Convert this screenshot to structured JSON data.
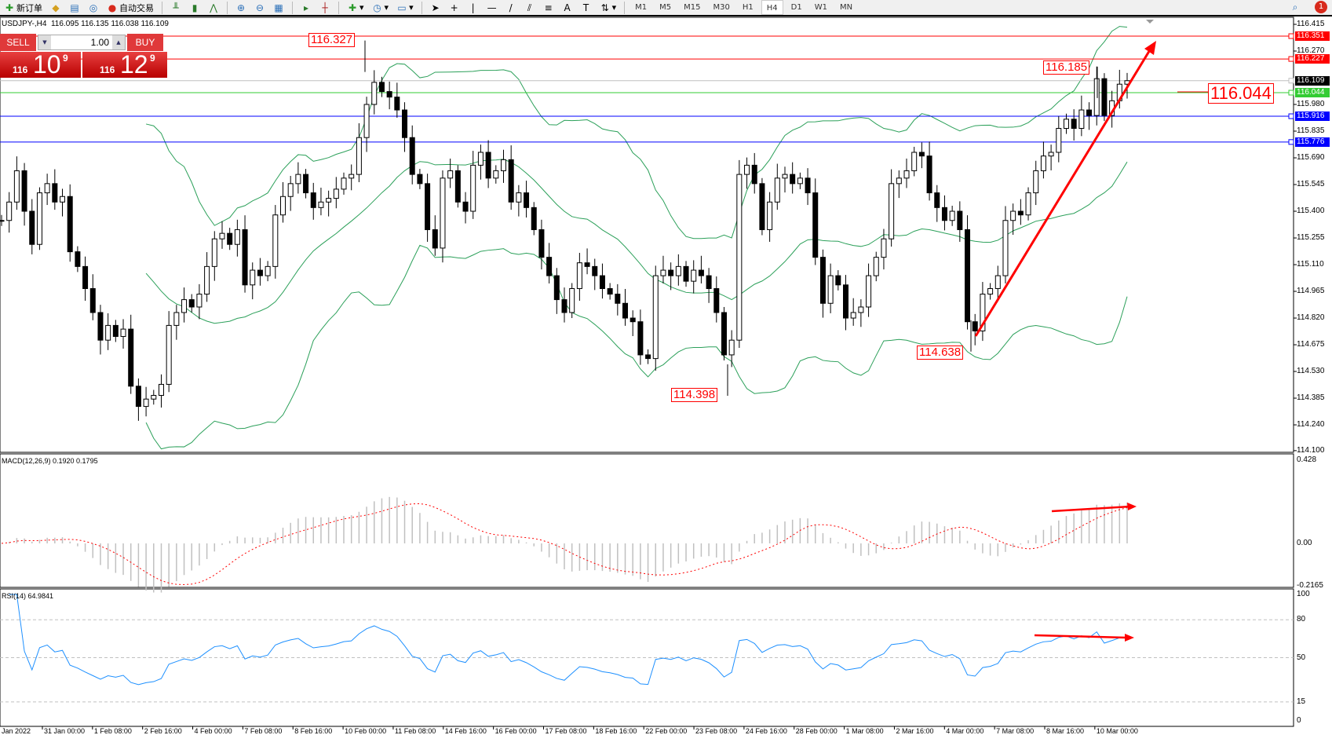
{
  "toolbar": {
    "new_order": "新订单",
    "auto_trading": "自动交易",
    "timeframes": [
      "M1",
      "M5",
      "M15",
      "M30",
      "H1",
      "H4",
      "D1",
      "W1",
      "MN"
    ],
    "active_timeframe": "H4",
    "notifications": "1"
  },
  "chart": {
    "header": "USDJPY-,H4  116.095 116.135 116.038 116.109",
    "one_click": {
      "sell": "SELL",
      "buy": "BUY",
      "lot": "1.00",
      "sell_price": {
        "big": "116",
        "main": "10",
        "sup": "9"
      },
      "buy_price": {
        "big": "116",
        "main": "12",
        "sup": "9"
      }
    },
    "price_axis": [
      "116.415",
      "116.270",
      "115.980",
      "115.835",
      "115.690",
      "115.545",
      "115.400",
      "115.255",
      "115.110",
      "114.965",
      "114.820",
      "114.675",
      "114.530",
      "114.385",
      "114.240",
      "114.100"
    ],
    "levels": [
      {
        "price": "116.351",
        "color": "#ff0000"
      },
      {
        "price": "116.227",
        "color": "#ff0000"
      },
      {
        "price": "116.109",
        "color": "#000000",
        "line": "#c0c0c0"
      },
      {
        "price": "116.044",
        "color": "#33cc33"
      },
      {
        "price": "115.916",
        "color": "#0000ff"
      },
      {
        "price": "115.776",
        "color": "#0000ff"
      }
    ],
    "annotations": [
      "116.327",
      "116.185",
      "114.398",
      "114.638",
      "116.044"
    ],
    "time_axis": [
      "Jan 2022",
      "31 Jan 00:00",
      "1 Feb 08:00",
      "2 Feb 16:00",
      "4 Feb 00:00",
      "7 Feb 08:00",
      "8 Feb 16:00",
      "10 Feb 00:00",
      "11 Feb 08:00",
      "14 Feb 16:00",
      "16 Feb 00:00",
      "17 Feb 08:00",
      "18 Feb 16:00",
      "22 Feb 00:00",
      "23 Feb 08:00",
      "24 Feb 16:00",
      "28 Feb 00:00",
      "1 Mar 08:00",
      "2 Mar 16:00",
      "4 Mar 00:00",
      "7 Mar 08:00",
      "8 Mar 16:00",
      "10 Mar 00:00"
    ]
  },
  "macd": {
    "label": "MACD(12,26,9) 0.1920 0.1795",
    "axis": [
      "0.428",
      "0.00",
      "-0.2165"
    ]
  },
  "rsi": {
    "label": "RSI(14) 64.9841",
    "axis": [
      "100",
      "80",
      "50",
      "15",
      "0"
    ]
  },
  "chart_data": {
    "type": "candlestick",
    "symbol": "USDJPY-",
    "timeframe": "H4",
    "ylim": [
      114.1,
      116.415
    ],
    "indicators": [
      "Bollinger Bands (green)",
      "MACD(12,26,9)",
      "RSI(14)"
    ],
    "closes": [
      115.35,
      115.45,
      115.62,
      115.4,
      115.22,
      115.5,
      115.55,
      115.45,
      115.48,
      115.18,
      115.1,
      114.98,
      114.85,
      114.7,
      114.78,
      114.72,
      114.76,
      114.45,
      114.34,
      114.38,
      114.4,
      114.46,
      114.78,
      114.85,
      114.92,
      114.88,
      114.95,
      115.1,
      115.25,
      115.28,
      115.22,
      115.3,
      115.0,
      115.08,
      115.05,
      115.1,
      115.38,
      115.48,
      115.55,
      115.6,
      115.5,
      115.42,
      115.45,
      115.47,
      115.52,
      115.58,
      115.6,
      115.8,
      115.98,
      116.1,
      116.05,
      116.02,
      115.95,
      115.8,
      115.6,
      115.55,
      115.3,
      115.2,
      115.58,
      115.62,
      115.45,
      115.4,
      115.65,
      115.72,
      115.58,
      115.62,
      115.68,
      115.45,
      115.5,
      115.42,
      115.3,
      115.15,
      115.05,
      114.92,
      114.85,
      114.98,
      115.12,
      115.1,
      115.05,
      114.98,
      114.95,
      114.9,
      114.82,
      114.8,
      114.62,
      114.6,
      115.05,
      115.08,
      115.05,
      115.1,
      115.02,
      115.08,
      115.05,
      114.98,
      114.85,
      114.62,
      114.7,
      115.6,
      115.65,
      115.55,
      115.3,
      115.45,
      115.58,
      115.6,
      115.55,
      115.58,
      115.5,
      115.15,
      114.9,
      115.05,
      115.0,
      114.82,
      114.85,
      114.88,
      115.05,
      115.15,
      115.25,
      115.55,
      115.58,
      115.62,
      115.72,
      115.7,
      115.5,
      115.42,
      115.35,
      115.4,
      115.3,
      114.8,
      114.75,
      114.95,
      114.98,
      115.05,
      115.35,
      115.4,
      115.38,
      115.5,
      115.62,
      115.7,
      115.72,
      115.85,
      115.9,
      115.85,
      115.95,
      115.92,
      116.12,
      115.92,
      116.0,
      116.09,
      116.109
    ]
  },
  "colors": {
    "bands": "#2ca05a",
    "macd_hist": "#c0c0c0",
    "macd_signal": "#ff0000",
    "rsi": "#1e90ff",
    "trend": "#ff0000"
  }
}
